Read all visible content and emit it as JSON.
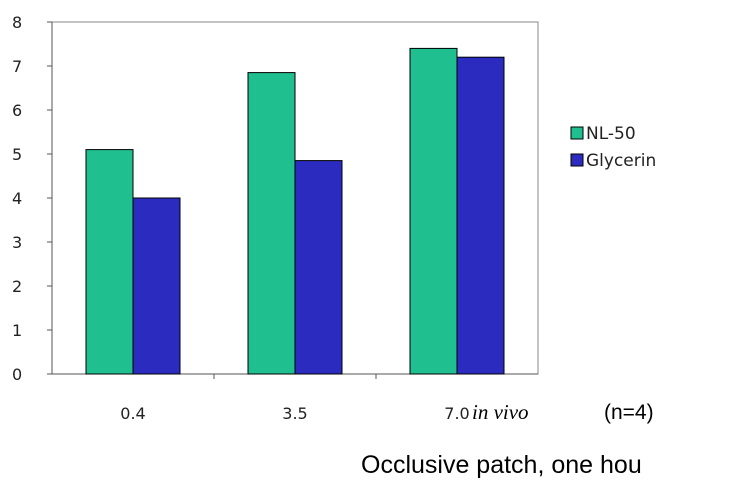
{
  "chart_data": {
    "type": "bar",
    "categories": [
      "0.4",
      "3.5",
      "7.0"
    ],
    "series": [
      {
        "name": "NL-50",
        "color": "#1fbf8f",
        "values": [
          5.1,
          6.85,
          7.4
        ]
      },
      {
        "name": "Glycerin",
        "color": "#2b2bbf",
        "values": [
          4.0,
          4.85,
          7.2
        ]
      }
    ],
    "yticks": [
      "0",
      "1",
      "2",
      "3",
      "4",
      "5",
      "6",
      "7",
      "8"
    ],
    "ylim": [
      0,
      8
    ],
    "grid": false,
    "legend_position": "right",
    "annotations": {
      "condition": "in vivo",
      "n": "(n=4)",
      "caption": "Occlusive patch, one hou"
    }
  }
}
